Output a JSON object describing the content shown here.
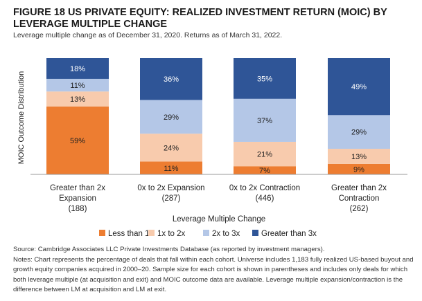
{
  "title": "FIGURE 18 US PRIVATE EQUITY: REALIZED INVESTMENT RETURN (MOIC) BY LEVERAGE MULTIPLE CHANGE",
  "subtitle": "Leverage multiple change as of December 31, 2020. Returns as of March 31, 2022.",
  "chart_data": {
    "type": "bar",
    "stacked": true,
    "categories": [
      [
        "Greater than 2x",
        "Expansion",
        "(188)"
      ],
      [
        "0x to 2x Expansion",
        "(287)"
      ],
      [
        "0x to 2x Contraction",
        "(446)"
      ],
      [
        "Greater than 2x",
        "Contraction",
        "(262)"
      ]
    ],
    "series": [
      {
        "name": "Less than 1x",
        "color": "#ED7D31",
        "values": [
          59,
          11,
          7,
          9
        ]
      },
      {
        "name": "1x to 2x",
        "color": "#F8CBAD",
        "values": [
          13,
          24,
          21,
          13
        ]
      },
      {
        "name": "2x to 3x",
        "color": "#B4C7E7",
        "values": [
          11,
          29,
          37,
          29
        ]
      },
      {
        "name": "Greater than 3x",
        "color": "#2F5597",
        "values": [
          18,
          36,
          35,
          49
        ]
      }
    ],
    "xlabel": "Leverage Multiple Change",
    "ylabel": "MOIC Outcome Distribution",
    "ylim": [
      0,
      100
    ],
    "legend": "bottom"
  },
  "notes": {
    "source": "Source: Cambridge Associates LLC Private Investments Database (as reported by investment managers).",
    "notes": "Notes: Chart represents the percentage of deals that fall within each cohort. Universe includes 1,183 fully realized US-based buyout and growth equity companies acquired in 2000–20. Sample size for each cohort is shown in parentheses and includes only deals for which both leverage multiple (at acquisition and exit) and MOIC outcome data are available. Leverage multiple expansion/contraction is the difference between LM at acquisition and LM at exit."
  }
}
